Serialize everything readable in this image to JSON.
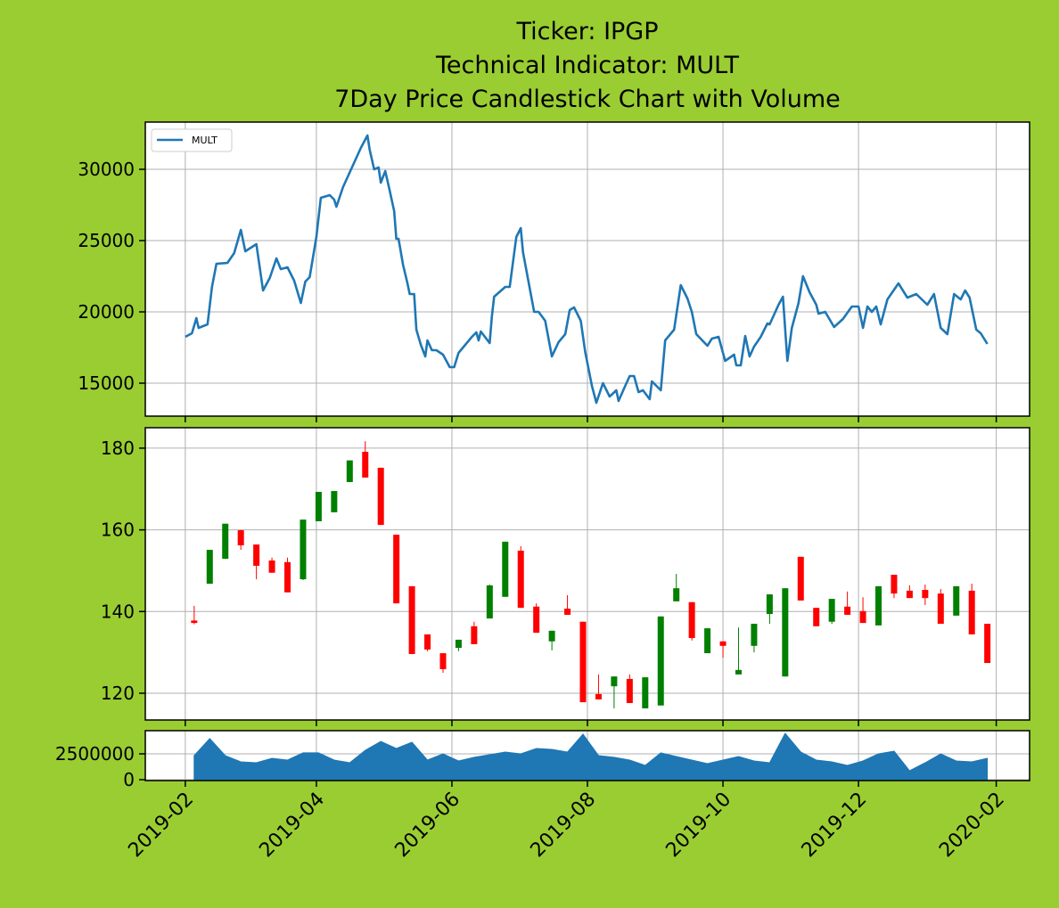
{
  "chart_data": [
    {
      "type": "line",
      "title": [
        "Ticker: IPGP",
        "Technical Indicator: MULT",
        "7Day Price Candlestick Chart with Volume"
      ],
      "legend": "upper left",
      "grid": true,
      "xlim": [
        "2019-01-14",
        "2020-02-16"
      ],
      "ylim": [
        12688,
        33312
      ],
      "yticks": [
        15000,
        20000,
        25000,
        30000
      ],
      "x": [
        "2019-02-01",
        "2019-02-04",
        "2019-02-06",
        "2019-02-07",
        "2019-02-11",
        "2019-02-13",
        "2019-02-15",
        "2019-02-20",
        "2019-02-23",
        "2019-02-26",
        "2019-02-28",
        "2019-03-05",
        "2019-03-08",
        "2019-03-11",
        "2019-03-14",
        "2019-03-16",
        "2019-03-19",
        "2019-03-22",
        "2019-03-25",
        "2019-03-27",
        "2019-03-29",
        "2019-04-01",
        "2019-04-03",
        "2019-04-07",
        "2019-04-09",
        "2019-04-10",
        "2019-04-13",
        "2019-04-17",
        "2019-04-21",
        "2019-04-24",
        "2019-04-25",
        "2019-04-27",
        "2019-04-29",
        "2019-04-30",
        "2019-05-02",
        "2019-05-04",
        "2019-05-06",
        "2019-05-07",
        "2019-05-08",
        "2019-05-10",
        "2019-05-12",
        "2019-05-13",
        "2019-05-15",
        "2019-05-16",
        "2019-05-18",
        "2019-05-20",
        "2019-05-21",
        "2019-05-23",
        "2019-05-25",
        "2019-05-28",
        "2019-05-31",
        "2019-06-02",
        "2019-06-04",
        "2019-06-06",
        "2019-06-10",
        "2019-06-12",
        "2019-06-13",
        "2019-06-14",
        "2019-06-18",
        "2019-06-19",
        "2019-06-20",
        "2019-06-25",
        "2019-06-27",
        "2019-06-30",
        "2019-07-02",
        "2019-07-03",
        "2019-07-08",
        "2019-07-10",
        "2019-07-13",
        "2019-07-16",
        "2019-07-19",
        "2019-07-22",
        "2019-07-24",
        "2019-07-26",
        "2019-07-29",
        "2019-07-31",
        "2019-08-03",
        "2019-08-05",
        "2019-08-08",
        "2019-08-11",
        "2019-08-14",
        "2019-08-15",
        "2019-08-18",
        "2019-08-20",
        "2019-08-22",
        "2019-08-24",
        "2019-08-26",
        "2019-08-29",
        "2019-08-30",
        "2019-09-03",
        "2019-09-05",
        "2019-09-09",
        "2019-09-12",
        "2019-09-15",
        "2019-09-17",
        "2019-09-19",
        "2019-09-24",
        "2019-09-26",
        "2019-09-29",
        "2019-10-02",
        "2019-10-06",
        "2019-10-07",
        "2019-10-09",
        "2019-10-11",
        "2019-10-13",
        "2019-10-15",
        "2019-10-18",
        "2019-10-21",
        "2019-10-22",
        "2019-10-26",
        "2019-10-28",
        "2019-10-30",
        "2019-11-01",
        "2019-11-04",
        "2019-11-06",
        "2019-11-09",
        "2019-11-12",
        "2019-11-13",
        "2019-11-16",
        "2019-11-20",
        "2019-11-24",
        "2019-11-28",
        "2019-12-01",
        "2019-12-03",
        "2019-12-05",
        "2019-12-07",
        "2019-12-09",
        "2019-12-11",
        "2019-12-14",
        "2019-12-19",
        "2019-12-23",
        "2019-12-27",
        "2020-01-01",
        "2020-01-04",
        "2020-01-07",
        "2020-01-10",
        "2020-01-13",
        "2020-01-16",
        "2020-01-18",
        "2020-01-20",
        "2020-01-23",
        "2020-01-25",
        "2020-01-28"
      ],
      "series": [
        {
          "name": "MULT",
          "color": "#1f77b4",
          "values": [
            18250,
            18500,
            19560,
            18875,
            19125,
            21750,
            23375,
            23440,
            24125,
            25750,
            24250,
            24750,
            21500,
            22375,
            23750,
            23000,
            23125,
            22190,
            20625,
            22125,
            22440,
            25250,
            28000,
            28190,
            27875,
            27375,
            28750,
            30125,
            31500,
            32375,
            31375,
            30000,
            30125,
            29060,
            29875,
            28500,
            27060,
            25125,
            25125,
            23310,
            22000,
            21250,
            21250,
            18750,
            17690,
            16875,
            18000,
            17310,
            17310,
            17000,
            16125,
            16125,
            17125,
            17500,
            18250,
            18560,
            18000,
            18625,
            17810,
            19690,
            21060,
            21750,
            21750,
            25250,
            25875,
            24190,
            20000,
            20000,
            19375,
            16875,
            17875,
            18440,
            20125,
            20310,
            19375,
            17190,
            14810,
            13625,
            15000,
            14060,
            14500,
            13750,
            14810,
            15500,
            15500,
            14375,
            14500,
            13875,
            15125,
            14500,
            18000,
            18750,
            21875,
            20935,
            20000,
            18440,
            17625,
            18125,
            18250,
            16560,
            17000,
            16250,
            16250,
            18310,
            16875,
            17560,
            18250,
            19190,
            19125,
            20500,
            21060,
            16560,
            18875,
            20625,
            22500,
            21375,
            20500,
            19875,
            20000,
            18940,
            19500,
            20375,
            20375,
            18875,
            20375,
            20000,
            20375,
            19125,
            20875,
            22000,
            21000,
            21250,
            20500,
            21250,
            18875,
            18440,
            21250,
            20875,
            21500,
            21000,
            18750,
            18500,
            17750
          ]
        }
      ]
    },
    {
      "type": "candlestick",
      "grid": true,
      "xlim": [
        "2019-01-14",
        "2020-02-16"
      ],
      "ylim": [
        113.45,
        185.0
      ],
      "yticks": [
        120,
        140,
        160,
        180
      ],
      "up_color": "#008000",
      "down_color": "#ff0000",
      "x": [
        "2019-02-05",
        "2019-02-12",
        "2019-02-19",
        "2019-02-26",
        "2019-03-05",
        "2019-03-12",
        "2019-03-19",
        "2019-03-26",
        "2019-04-02",
        "2019-04-09",
        "2019-04-16",
        "2019-04-23",
        "2019-04-30",
        "2019-05-07",
        "2019-05-14",
        "2019-05-21",
        "2019-05-28",
        "2019-06-04",
        "2019-06-11",
        "2019-06-18",
        "2019-06-25",
        "2019-07-02",
        "2019-07-09",
        "2019-07-16",
        "2019-07-23",
        "2019-07-30",
        "2019-08-06",
        "2019-08-13",
        "2019-08-20",
        "2019-08-27",
        "2019-09-03",
        "2019-09-10",
        "2019-09-17",
        "2019-09-24",
        "2019-10-01",
        "2019-10-08",
        "2019-10-15",
        "2019-10-22",
        "2019-10-29",
        "2019-11-05",
        "2019-11-12",
        "2019-11-19",
        "2019-11-26",
        "2019-12-03",
        "2019-12-10",
        "2019-12-17",
        "2019-12-24",
        "2019-12-31",
        "2020-01-07",
        "2020-01-14",
        "2020-01-21",
        "2020-01-28"
      ],
      "open": [
        137.8,
        146.8,
        152.9,
        159.9,
        156.4,
        152.5,
        152.1,
        147.9,
        162.1,
        164.3,
        171.7,
        179.1,
        175.2,
        158.8,
        146.2,
        134.4,
        129.8,
        131.1,
        136.4,
        138.3,
        143.6,
        154.9,
        141.2,
        132.7,
        140.7,
        137.5,
        119.8,
        121.7,
        123.5,
        116.3,
        117.0,
        142.5,
        142.3,
        129.8,
        132.7,
        124.6,
        131.6,
        139.4,
        124.1,
        153.4,
        140.9,
        137.5,
        141.2,
        140.1,
        136.6,
        149.0,
        145.1,
        145.3,
        144.4,
        139.0,
        145.1,
        137.0
      ],
      "high": [
        141.4,
        155.1,
        161.5,
        160.0,
        156.4,
        153.2,
        153.2,
        162.5,
        169.3,
        169.5,
        177.0,
        181.7,
        175.2,
        158.8,
        146.2,
        134.4,
        129.8,
        133.1,
        137.5,
        146.6,
        157.1,
        156.0,
        142.0,
        135.3,
        144.0,
        137.5,
        124.6,
        124.1,
        124.6,
        123.9,
        138.8,
        149.2,
        142.3,
        135.9,
        132.7,
        136.1,
        137.0,
        144.2,
        145.7,
        153.4,
        140.9,
        143.1,
        144.9,
        143.5,
        146.2,
        149.0,
        146.4,
        146.6,
        145.5,
        146.2,
        146.8,
        137.0
      ],
      "low": [
        136.9,
        146.8,
        152.9,
        155.1,
        147.9,
        149.5,
        144.7,
        147.7,
        162.1,
        164.3,
        171.7,
        172.8,
        161.2,
        142.0,
        129.6,
        130.3,
        125.0,
        130.3,
        132.0,
        138.3,
        143.6,
        140.9,
        134.8,
        130.5,
        139.2,
        117.8,
        118.5,
        116.3,
        117.6,
        116.3,
        117.0,
        142.5,
        132.9,
        129.8,
        128.7,
        124.6,
        130.0,
        137.0,
        124.1,
        142.7,
        136.4,
        137.0,
        139.2,
        137.2,
        136.6,
        143.3,
        143.3,
        141.6,
        137.0,
        139.0,
        134.4,
        127.4
      ],
      "close": [
        137.2,
        155.1,
        161.5,
        156.2,
        151.2,
        149.5,
        144.7,
        162.5,
        169.3,
        169.5,
        177.0,
        172.8,
        161.2,
        142.0,
        129.6,
        130.7,
        125.9,
        133.1,
        132.0,
        146.4,
        157.1,
        140.9,
        134.8,
        135.3,
        139.2,
        117.8,
        118.5,
        124.1,
        117.6,
        123.9,
        138.8,
        145.7,
        133.5,
        135.9,
        131.6,
        125.7,
        137.0,
        144.2,
        145.7,
        142.7,
        136.4,
        143.1,
        139.2,
        137.2,
        146.2,
        144.4,
        143.3,
        143.3,
        137.0,
        146.2,
        134.4,
        127.4
      ]
    },
    {
      "type": "area",
      "grid": true,
      "color": "#1f77b4",
      "xlim": [
        "2019-01-14",
        "2020-02-16"
      ],
      "ylim": [
        -86000,
        4740000
      ],
      "yticks": [
        0,
        2500000
      ],
      "xticks": [
        {
          "value": "2019-02-01",
          "label": "2019-02"
        },
        {
          "value": "2019-04-01",
          "label": "2019-04"
        },
        {
          "value": "2019-06-01",
          "label": "2019-06"
        },
        {
          "value": "2019-08-01",
          "label": "2019-08"
        },
        {
          "value": "2019-10-01",
          "label": "2019-10"
        },
        {
          "value": "2019-12-01",
          "label": "2019-12"
        },
        {
          "value": "2020-02-01",
          "label": "2020-02"
        }
      ],
      "x": [
        "2019-02-05",
        "2019-02-12",
        "2019-02-19",
        "2019-02-26",
        "2019-03-05",
        "2019-03-12",
        "2019-03-19",
        "2019-03-26",
        "2019-04-02",
        "2019-04-09",
        "2019-04-16",
        "2019-04-23",
        "2019-04-30",
        "2019-05-07",
        "2019-05-14",
        "2019-05-21",
        "2019-05-28",
        "2019-06-04",
        "2019-06-11",
        "2019-06-18",
        "2019-06-25",
        "2019-07-02",
        "2019-07-09",
        "2019-07-16",
        "2019-07-23",
        "2019-07-30",
        "2019-08-06",
        "2019-08-13",
        "2019-08-20",
        "2019-08-27",
        "2019-09-03",
        "2019-09-10",
        "2019-09-17",
        "2019-09-24",
        "2019-10-01",
        "2019-10-08",
        "2019-10-15",
        "2019-10-22",
        "2019-10-29",
        "2019-11-05",
        "2019-11-12",
        "2019-11-19",
        "2019-11-26",
        "2019-12-03",
        "2019-12-10",
        "2019-12-17",
        "2019-12-24",
        "2019-12-31",
        "2020-01-07",
        "2020-01-14",
        "2020-01-21",
        "2020-01-28"
      ],
      "values": [
        2330000,
        3970000,
        2330000,
        1720000,
        1640000,
        2070000,
        1900000,
        2590000,
        2590000,
        1900000,
        1640000,
        2840000,
        3710000,
        3020000,
        3620000,
        1900000,
        2500000,
        1810000,
        2160000,
        2410000,
        2670000,
        2500000,
        3020000,
        2930000,
        2670000,
        4400000,
        2330000,
        2160000,
        1900000,
        1380000,
        2590000,
        2240000,
        1900000,
        1550000,
        1900000,
        2240000,
        1810000,
        1640000,
        4480000,
        2670000,
        1900000,
        1720000,
        1380000,
        1810000,
        2500000,
        2760000,
        860000,
        1640000,
        2500000,
        1810000,
        1720000,
        2070000
      ]
    }
  ]
}
